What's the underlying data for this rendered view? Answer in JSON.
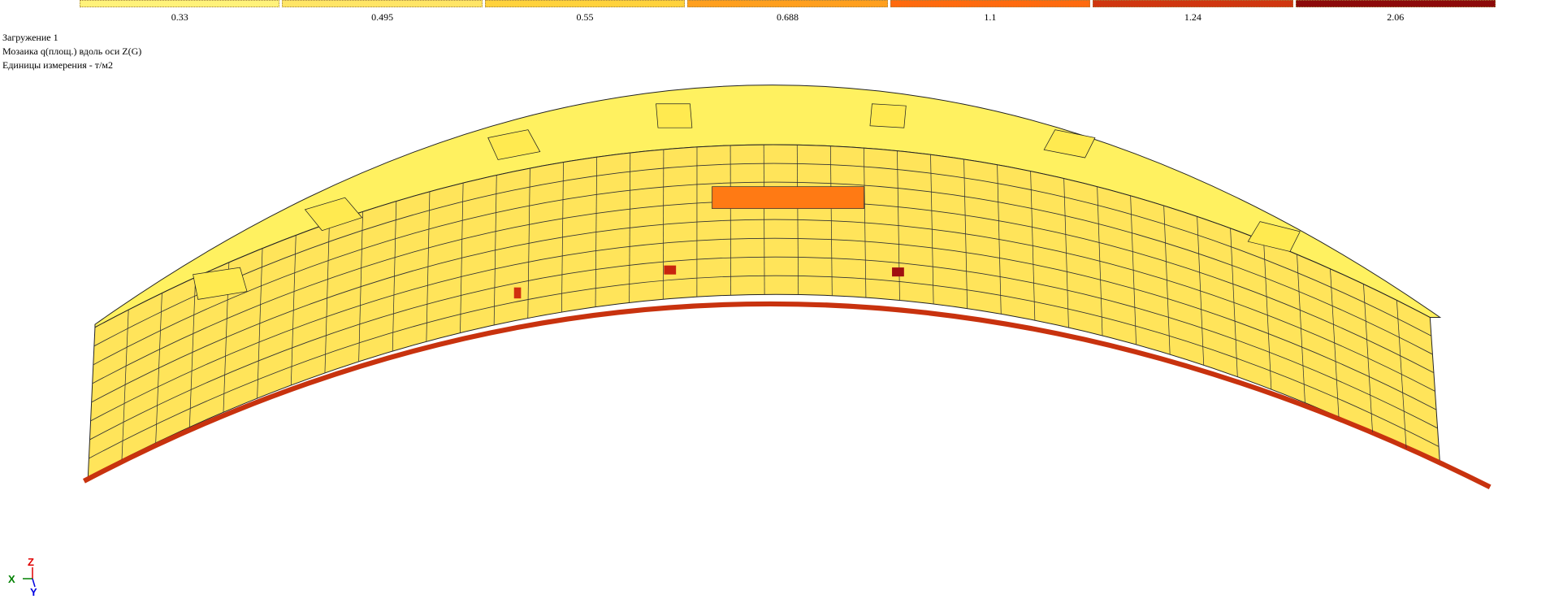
{
  "legend": {
    "items": [
      {
        "label": "0.33",
        "color": "#fff27a"
      },
      {
        "label": "0.495",
        "color": "#ffe566"
      },
      {
        "label": "0.55",
        "color": "#ffd23c"
      },
      {
        "label": "0.688",
        "color": "#ff9f1e"
      },
      {
        "label": "1.1",
        "color": "#ff6a0e"
      },
      {
        "label": "1.24",
        "color": "#d0360f"
      },
      {
        "label": "2.06",
        "color": "#8c0a0a"
      }
    ]
  },
  "info": {
    "lines": [
      "Загружение 1",
      "Мозаика q(площ.) вдоль оси  Z(G)",
      "Единицы измерения - т/м2"
    ]
  },
  "axes": {
    "z": "Z",
    "x": "X",
    "y": "Y"
  }
}
